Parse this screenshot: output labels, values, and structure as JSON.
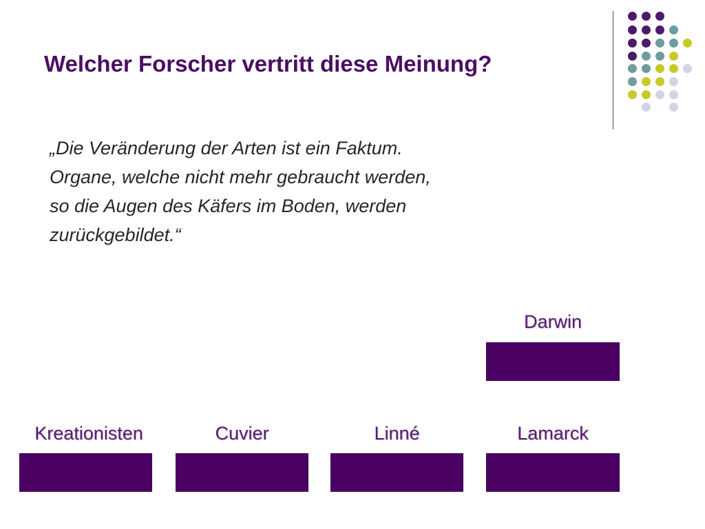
{
  "slide": {
    "title": "Welcher Forscher vertritt diese Meinung?",
    "quote_lines": [
      "„Die Veränderung der Arten ist ein Faktum.",
      "Organe, welche nicht mehr gebraucht werden,",
      "so die Augen des Käfers im Boden, werden",
      "zurückgebildet.“"
    ]
  },
  "answers": [
    {
      "label": "Kreationisten"
    },
    {
      "label": "Cuvier"
    },
    {
      "label": "Linné"
    },
    {
      "label": "Lamarck"
    },
    {
      "label": "Darwin"
    }
  ],
  "colors": {
    "title": "#4a0e63",
    "box": "#4b0064",
    "dot_purple": "#4d1a6b",
    "dot_teal": "#6f9c9e",
    "dot_yellow": "#c9c92a",
    "dot_lilac": "#d3d3e6"
  }
}
